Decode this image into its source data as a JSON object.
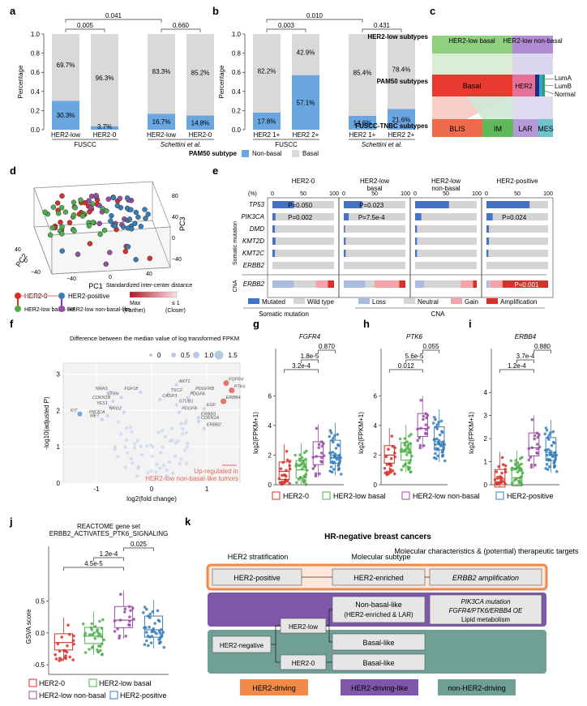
{
  "panel_labels": {
    "a": "a",
    "b": "b",
    "c": "c",
    "d": "d",
    "e": "e",
    "f": "f",
    "g": "g",
    "h": "h",
    "i": "i",
    "j": "j",
    "k": "k"
  },
  "colors": {
    "nonbasal": "#6aa6e0",
    "basal": "#d9d9d9",
    "orange": "#f08a4b",
    "purple": "#7e57a8",
    "teal": "#6f9f95",
    "red": "#d7302a",
    "pink": "#e58fa0",
    "green": "#4daf4a",
    "blue": "#377eb8"
  },
  "chart_data": [
    {
      "id": "a",
      "type": "bar",
      "ylabel": "Percentage",
      "ylim": [
        0,
        1.0
      ],
      "yticks": [
        "0.0",
        "0.2",
        "0.4",
        "0.6",
        "0.8",
        "1.0"
      ],
      "categories": [
        "HER2-low",
        "HER2-0",
        "HER2-low",
        "HER2-0"
      ],
      "groups": [
        "FUSCC",
        "Schettini et al."
      ],
      "series": [
        {
          "name": "Non-basal",
          "values": [
            30.3,
            3.7,
            16.7,
            14.8
          ]
        },
        {
          "name": "Basal",
          "values": [
            69.7,
            96.3,
            83.3,
            85.2
          ]
        }
      ],
      "bar_labels_basal": [
        "69.7%",
        "96.3%",
        "83.3%",
        "85.2%"
      ],
      "bar_labels_nonbasal": [
        "30.3%",
        "3.7%",
        "16.7%",
        "14.8%"
      ],
      "pvalues": [
        "0.005",
        "0.660",
        "0.041"
      ]
    },
    {
      "id": "b",
      "type": "bar",
      "ylabel": "Percentage",
      "ylim": [
        0,
        1.0
      ],
      "yticks": [
        "0.0",
        "0.2",
        "0.4",
        "0.6",
        "0.8",
        "1.0"
      ],
      "categories": [
        "HER2 1+",
        "HER2 2+",
        "HER2 1+",
        "HER2 2+"
      ],
      "groups": [
        "FUSCC",
        "Schettini et al."
      ],
      "series": [
        {
          "name": "Non-basal",
          "values": [
            17.8,
            57.1,
            14.6,
            21.6
          ]
        },
        {
          "name": "Basal",
          "values": [
            82.2,
            42.9,
            85.4,
            78.4
          ]
        }
      ],
      "bar_labels_basal": [
        "82.2%",
        "42.9%",
        "85.4%",
        "78.4%"
      ],
      "bar_labels_nonbasal": [
        "17.8%",
        "57.1%",
        "14.6%",
        "21.6%"
      ],
      "pvalues": [
        "0.003",
        "0.431",
        "0.010"
      ]
    },
    {
      "id": "g",
      "type": "box",
      "title": "FGFR4",
      "ylabel": "log2(FPKM+1)",
      "yticks": [
        "0",
        "2",
        "4",
        "6"
      ],
      "ylim": [
        0,
        7
      ],
      "groups": [
        "HER2-0",
        "HER2-low basal",
        "HER2-low non-basal",
        "HER2-positive"
      ],
      "medians": [
        0.9,
        1.0,
        1.9,
        2.0
      ],
      "pvalues": [
        "3.2e-4",
        "1.8e-5",
        "0.870"
      ]
    },
    {
      "id": "h",
      "type": "box",
      "title": "PTK6",
      "ylabel": "log2(FPKM+1)",
      "yticks": [
        "0",
        "2",
        "4",
        "6"
      ],
      "ylim": [
        0,
        7
      ],
      "groups": [
        "HER2-0",
        "HER2-low basal",
        "HER2-low non-basal",
        "HER2-positive"
      ],
      "medians": [
        2.0,
        2.2,
        3.8,
        2.9
      ],
      "pvalues": [
        "0.012",
        "5.6e-5",
        "0.055"
      ]
    },
    {
      "id": "i",
      "type": "box",
      "title": "ERBB4",
      "ylabel": "log2(FPKM+1)",
      "yticks": [
        "0",
        "1",
        "2",
        "3",
        "4"
      ],
      "ylim": [
        0,
        4.5
      ],
      "groups": [
        "HER2-0",
        "HER2-low basal",
        "HER2-low non-basal",
        "HER2-positive"
      ],
      "medians": [
        0.25,
        0.3,
        1.6,
        1.4
      ],
      "pvalues": [
        "1.2e-4",
        "3.7e-4",
        "0.880"
      ]
    },
    {
      "id": "j",
      "type": "box",
      "title": "REACTOME gene set",
      "subtitle": "ERBB2_ACTIVATES_PTK6_SIGNALING",
      "ylabel": "GSVA score",
      "yticks": [
        "-0.5",
        "0.0",
        "0.5"
      ],
      "ylim": [
        -0.65,
        0.85
      ],
      "groups": [
        "HER2-0",
        "HER2-low basal",
        "HER2-low non-basal",
        "HER2-positive"
      ],
      "medians": [
        -0.15,
        -0.05,
        0.2,
        0.05
      ],
      "pvalues": [
        "4.5e-5",
        "1.2e-4",
        "0.025"
      ]
    },
    {
      "id": "f",
      "type": "scatter",
      "title": "Difference between the median value of log transformed FPKM",
      "xlabel": "log2(fold change)",
      "ylabel": "-log10(adjusted P)",
      "xlim": [
        -1.6,
        1.6
      ],
      "ylim": [
        0,
        3.3
      ],
      "xticks": [
        "-1",
        "0",
        "1"
      ],
      "yticks": [
        "0",
        "1",
        "2",
        "3"
      ],
      "size_legend": [
        "0",
        "0.5",
        "1.0",
        "1.5"
      ],
      "points": [
        {
          "label": "FGFR4",
          "x": 1.35,
          "y": 2.75
        },
        {
          "label": "PTK6",
          "x": 1.45,
          "y": 2.55
        },
        {
          "label": "ERBB4",
          "x": 1.3,
          "y": 2.25
        },
        {
          "label": "AKT1",
          "x": 0.45,
          "y": 2.7
        },
        {
          "label": "FGF18",
          "x": -0.2,
          "y": 2.5
        },
        {
          "label": "TSC2",
          "x": 0.3,
          "y": 2.45
        },
        {
          "label": "PDGFRB",
          "x": 0.75,
          "y": 2.5
        },
        {
          "label": "PDGFA",
          "x": 0.65,
          "y": 2.35
        },
        {
          "label": "CASP3",
          "x": 0.15,
          "y": 2.3
        },
        {
          "label": "STUB1",
          "x": 0.45,
          "y": 2.15
        },
        {
          "label": "EGF",
          "x": 0.95,
          "y": 2.05
        },
        {
          "label": "PDGFB",
          "x": 0.5,
          "y": 1.95
        },
        {
          "label": "ERBB3",
          "x": 0.85,
          "y": 1.8
        },
        {
          "label": "CDKN1A",
          "x": 0.85,
          "y": 1.7
        },
        {
          "label": "ERBB2",
          "x": 0.95,
          "y": 1.5
        },
        {
          "label": "NRAS",
          "x": -0.75,
          "y": 2.5
        },
        {
          "label": "STRN",
          "x": -0.55,
          "y": 2.35
        },
        {
          "label": "CDKN1B",
          "x": -0.7,
          "y": 2.25
        },
        {
          "label": "YES1",
          "x": -0.75,
          "y": 2.1
        },
        {
          "label": "NRG2",
          "x": -0.5,
          "y": 1.95
        },
        {
          "label": "PIK3CA",
          "x": -0.8,
          "y": 1.85
        },
        {
          "label": "MET",
          "x": -0.9,
          "y": 1.75
        },
        {
          "label": "KIT",
          "x": -1.3,
          "y": 1.9
        }
      ],
      "annotation": "Up-regulated in HER2-low non-basal-like tumors"
    }
  ],
  "legend_ab": {
    "title": "PAM50 subtype",
    "items": [
      "Non-basal",
      "Basal"
    ]
  },
  "schettini_label": "Schettini et al.",
  "panel_c": {
    "rows": [
      {
        "label": "HER2-low subtypes",
        "segments": [
          "HER2-low basal",
          "HER2-low non-basal"
        ]
      },
      {
        "label": "PAM50 subtypes",
        "segments": [
          "Basal",
          "HER2"
        ]
      },
      {
        "label": "FUSCC-TNBC subtypes",
        "segments": [
          "BLIS",
          "IM",
          "LAR",
          "MES"
        ]
      }
    ],
    "side_labels": [
      "LumA",
      "LumB",
      "Normal"
    ]
  },
  "panel_d": {
    "axes": {
      "x": "PC1",
      "y": "PC2",
      "z": "PC3"
    },
    "ticks": {
      "x": [
        "−40",
        "0",
        "40"
      ],
      "y": [
        "−40",
        "0",
        "40"
      ],
      "z": [
        "80",
        "40",
        "0",
        "−40"
      ]
    },
    "legend": [
      "HER2-0",
      "HER2-positive",
      "HER2-low basal-like",
      "HER2-low non-basal-like"
    ],
    "distance_title": "Standardized inter-center distance",
    "distance_max": "Max",
    "distance_max_sub": "(Farther)",
    "distance_min": "≤ 1",
    "distance_min_sub": "(Closer)"
  },
  "panel_e": {
    "columns": [
      "HER2-0",
      "HER2-low basal",
      "HER2-low non-basal",
      "HER2-positive"
    ],
    "axis_ticks": [
      "0",
      "50",
      "100"
    ],
    "percent_label": "(%)",
    "genes": [
      "TP53",
      "PIK3CA",
      "DMD",
      "KMT2D",
      "KMT2C",
      "ERBB2",
      "ERBB2"
    ],
    "somatic_label": "Somatic mutation",
    "cna_label": "CNA",
    "mutated": [
      [
        35,
        30,
        55,
        70
      ],
      [
        5,
        8,
        10,
        10
      ],
      [
        4,
        2,
        3,
        4
      ],
      [
        5,
        3,
        3,
        4
      ],
      [
        4,
        3,
        3,
        3
      ],
      [
        0,
        0,
        0,
        0
      ]
    ],
    "cna": [
      [
        35,
        34,
        20,
        10
      ],
      [
        35,
        34,
        40,
        10
      ],
      [
        15,
        22,
        20,
        6
      ],
      [
        5,
        10,
        20,
        74
      ]
    ],
    "pvals": [
      [
        "P=0.050",
        "P=0.023",
        "",
        ""
      ],
      [
        "P=0.002",
        "P=7.5e-4",
        "",
        "P=0.024"
      ],
      [
        "",
        "",
        "",
        ""
      ],
      [
        "",
        "",
        "",
        ""
      ],
      [
        "",
        "",
        "",
        ""
      ],
      [
        "",
        "",
        "",
        ""
      ]
    ],
    "cna_pvals": [
      "",
      "",
      "",
      "P=0.001"
    ],
    "legend": [
      "Mutated",
      "Wild type",
      "Loss",
      "Neutral",
      "Gain",
      "Amplification"
    ],
    "group_labels": [
      "Somatic mutation",
      "CNA"
    ]
  },
  "box_legend": [
    "HER2-0",
    "HER2-low basal",
    "HER2-low non-basal",
    "HER2-positive"
  ],
  "panel_k": {
    "title": "HR-negative breast cancers",
    "headers": [
      "HER2 stratification",
      "Molecular subtype",
      "Molecular characteristics & (potential) therapeutic targets"
    ],
    "row1": {
      "strat": "HER2-positive",
      "sub": "HER2-enriched",
      "target": "ERBB2 amplification"
    },
    "row2": {
      "sub": "Non-basal-like",
      "sub2": "(HER2-enriched & LAR)",
      "target1": "PIK3CA mutation",
      "target2": "FGFR4/PTK6/ERBB4 OE",
      "target3": "Lipid metabolism"
    },
    "row3": {
      "neg": "HER2-negative",
      "low": "HER2-low",
      "zero": "HER2-0",
      "basal1": "Basal-like",
      "basal2": "Basal-like"
    },
    "legend": [
      "HER2-driving",
      "HER2-driving-like",
      "non-HER2-driving"
    ]
  }
}
